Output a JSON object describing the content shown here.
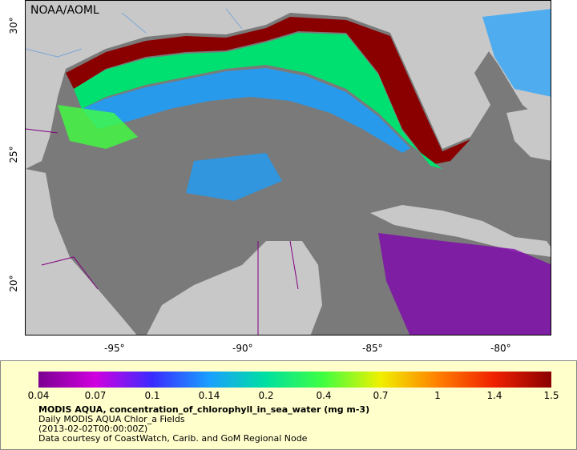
{
  "map": {
    "credit": "NOAA/AOML",
    "lon_ticks": [
      "-95°",
      "-90°",
      "-85°",
      "-80°"
    ],
    "lat_ticks": [
      "30°",
      "25°",
      "20°"
    ],
    "colors": {
      "ocean_nodata": "#7a7a7a",
      "land": "#c8c8c8",
      "border": "#800080",
      "river": "#7aa6d8"
    }
  },
  "legend": {
    "ticks": [
      "0.04",
      "0.07",
      "0.1",
      "0.14",
      "0.2",
      "0.4",
      "0.7",
      "1",
      "1.4",
      "1.5"
    ],
    "colors": [
      "#7a0090",
      "#d000e0",
      "#3a2cff",
      "#1aa0ff",
      "#00e0a0",
      "#40ff40",
      "#f0f000",
      "#ff8000",
      "#f02000",
      "#8a0000"
    ],
    "variable": "MODIS AQUA, concentration_of_chlorophyll_in_sea_water (mg m-3)",
    "product": "Daily MODIS AQUA Chlor_a Fields",
    "timestamp": "(2013-02-02T00:00:00Z)",
    "source": "Data courtesy of CoastWatch, Carib. and GoM Regional Node"
  }
}
